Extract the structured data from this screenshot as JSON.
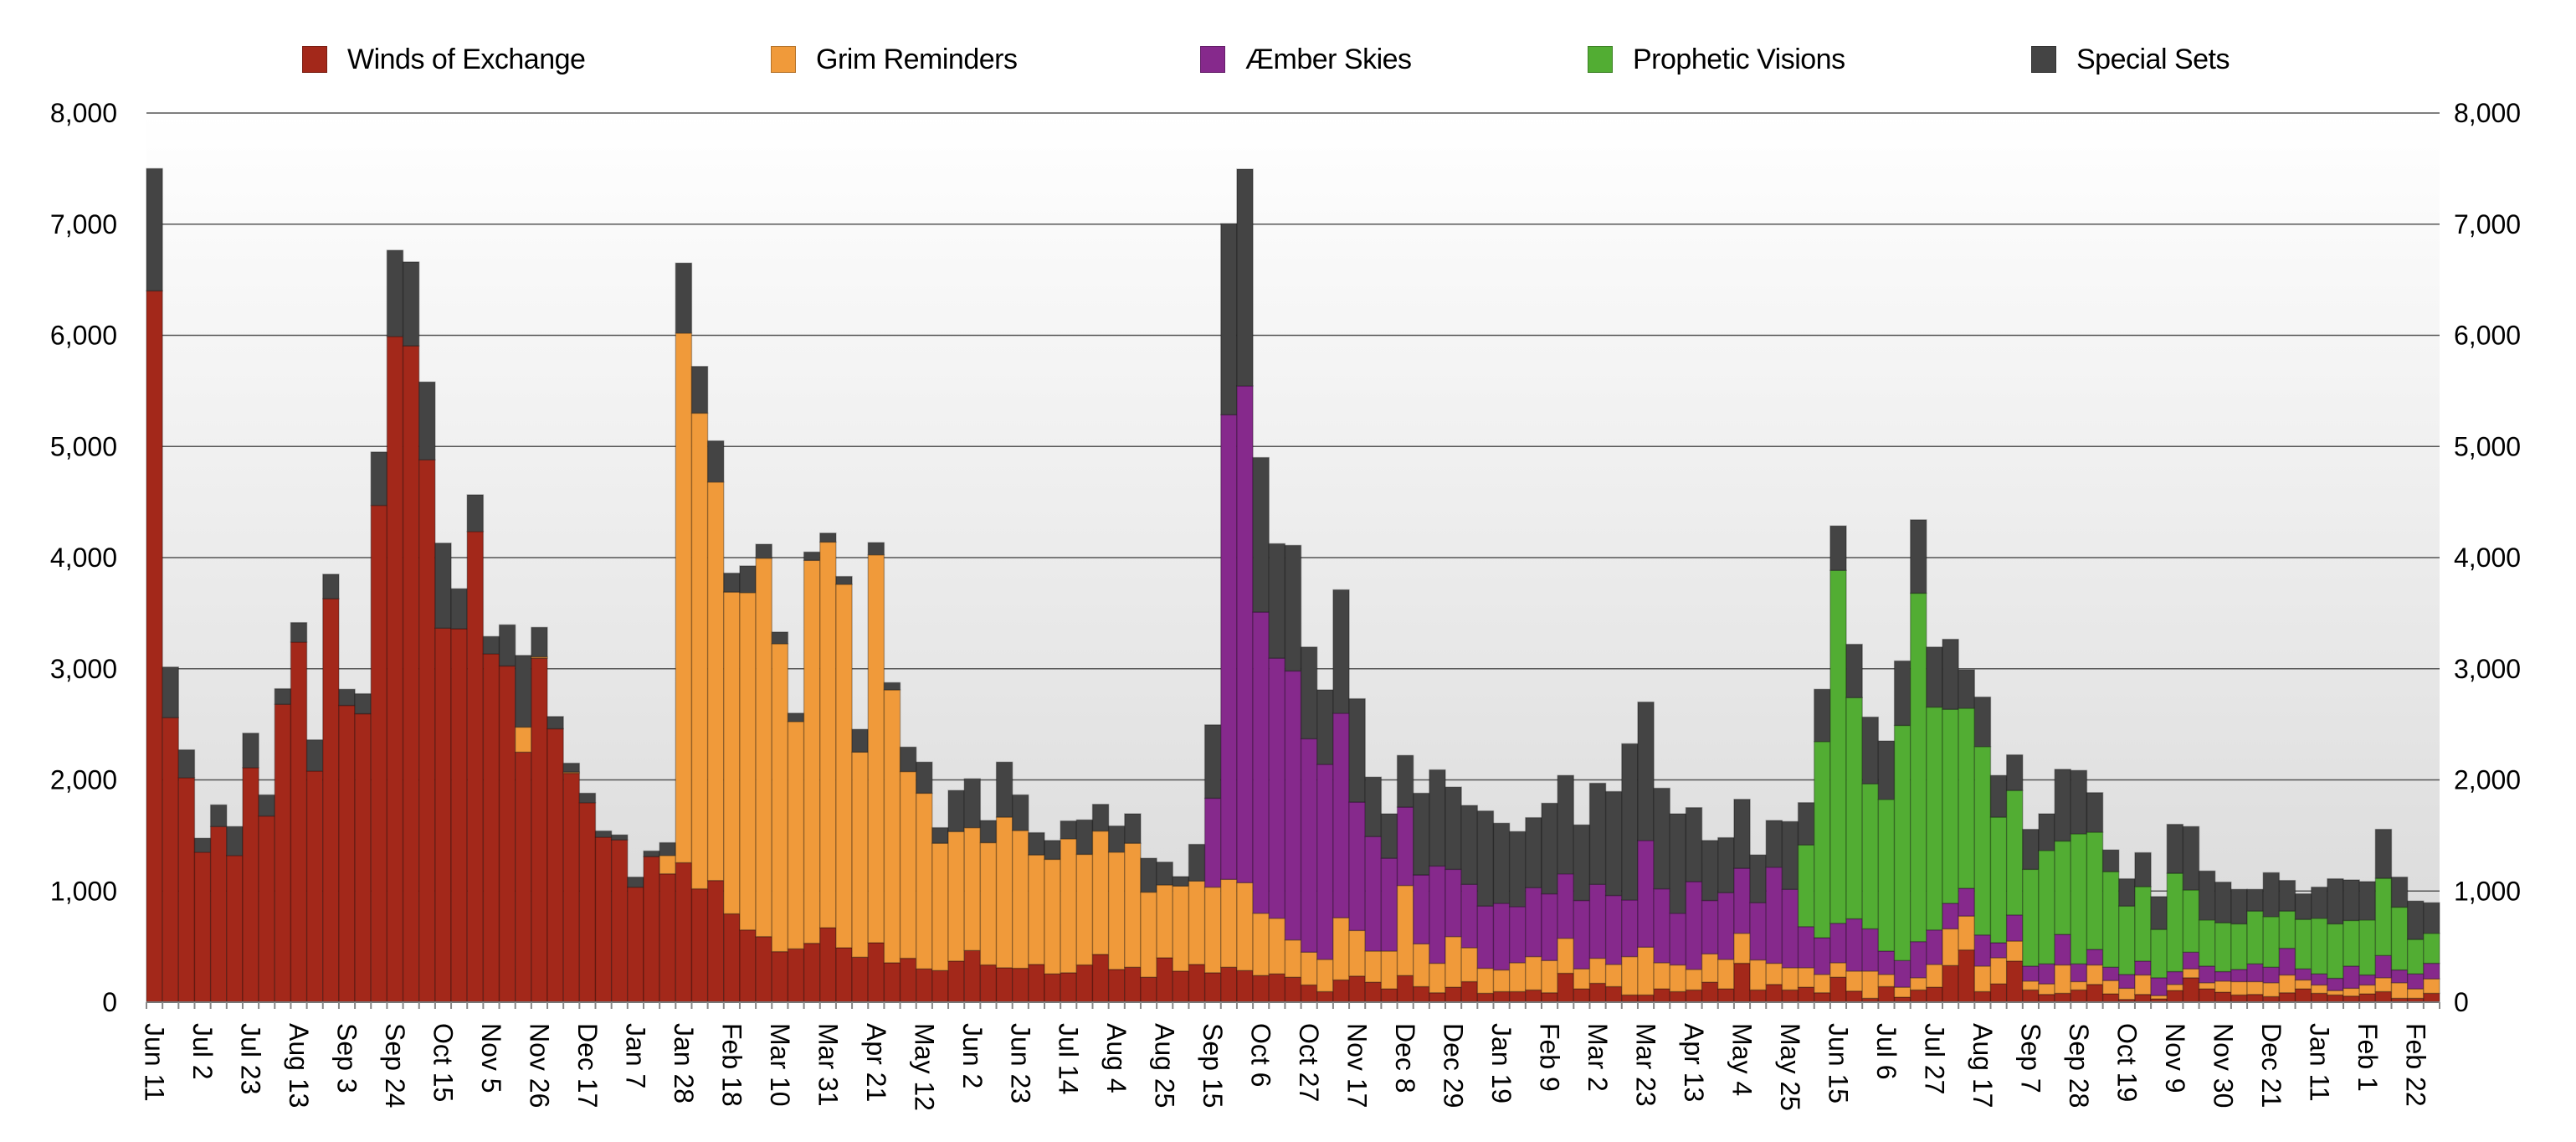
{
  "chart_data": {
    "type": "bar",
    "stacked": true,
    "ylim": [
      0,
      8000
    ],
    "y_ticks": [
      "0",
      "1,000",
      "2,000",
      "3,000",
      "4,000",
      "5,000",
      "6,000",
      "7,000",
      "8,000"
    ],
    "y_axis_sides": "left and right",
    "grid": true,
    "legend_position": "top",
    "x_tick_labels": [
      "Jun 11",
      "Jul 2",
      "Jul 23",
      "Aug 13",
      "Sep 3",
      "Sep 24",
      "Oct 15",
      "Nov 5",
      "Nov 26",
      "Dec 17",
      "Jan 7",
      "Jan 28",
      "Feb 18",
      "Mar 10",
      "Mar 31",
      "Apr 21",
      "May 12",
      "Jun 2",
      "Jun 23",
      "Jul 14",
      "Aug 4",
      "Aug 25",
      "Sep 15",
      "Oct 6",
      "Oct 27",
      "Nov 17",
      "Dec 8",
      "Dec 29",
      "Jan 19",
      "Feb 9",
      "Mar 2",
      "Mar 23",
      "Apr 13",
      "May 4",
      "May 25",
      "Jun 15",
      "Jul 6",
      "Jul 27",
      "Aug 17",
      "Sep 7",
      "Sep 28",
      "Oct 19",
      "Nov 9",
      "Nov 30",
      "Dec 21",
      "Jan 11",
      "Feb 1",
      "Feb 22"
    ],
    "x_tick_every_n_bars": 3,
    "series": [
      {
        "name": "Winds of Exchange",
        "color": "#a3281a",
        "values": [
          6400,
          2560,
          2020,
          1350,
          1580,
          1320,
          2110,
          1675,
          2680,
          3240,
          2080,
          3630,
          2670,
          2595,
          4470,
          5990,
          5905,
          4880,
          3365,
          3360,
          4235,
          3135,
          3025,
          2250,
          3095,
          2460,
          2060,
          1795,
          1485,
          1460,
          1035,
          1310,
          1155,
          1255,
          1020,
          1095,
          795,
          650,
          590,
          455,
          480,
          530,
          670,
          490,
          405,
          535,
          355,
          395,
          300,
          285,
          370,
          465,
          335,
          310,
          305,
          340,
          255,
          265,
          335,
          430,
          295,
          315,
          225,
          400,
          280,
          340,
          265,
          315,
          285,
          240,
          255,
          225,
          155,
          95,
          200,
          235,
          180,
          120,
          240,
          140,
          85,
          135,
          185,
          80,
          95,
          95,
          110,
          85,
          260,
          120,
          170,
          140,
          65,
          65,
          120,
          95,
          110,
          180,
          120,
          350,
          110,
          160,
          110,
          135,
          85,
          225,
          100,
          35,
          140,
          45,
          110,
          135,
          330,
          470,
          95,
          165,
          370,
          110,
          70,
          80,
          110,
          160,
          75,
          25,
          70,
          30,
          105,
          220,
          120,
          90,
          65,
          70,
          50,
          85,
          120,
          80,
          65,
          55,
          75,
          95,
          35,
          35,
          80
        ]
      },
      {
        "name": "Grim Reminders",
        "color": "#f09a3a",
        "values": [
          0,
          0,
          0,
          0,
          0,
          0,
          0,
          0,
          0,
          0,
          0,
          0,
          0,
          0,
          0,
          0,
          0,
          0,
          0,
          0,
          0,
          0,
          0,
          225,
          12,
          0,
          10,
          0,
          0,
          0,
          0,
          0,
          165,
          4765,
          4280,
          3585,
          2895,
          3035,
          3405,
          2770,
          2045,
          3445,
          3470,
          3270,
          1845,
          3490,
          2455,
          1680,
          1580,
          1145,
          1165,
          1105,
          1100,
          1355,
          1240,
          985,
          1030,
          1205,
          995,
          1110,
          1055,
          1115,
          765,
          655,
          765,
          750,
          770,
          790,
          790,
          560,
          500,
          335,
          295,
          290,
          560,
          410,
          280,
          340,
          810,
          385,
          265,
          455,
          305,
          225,
          195,
          260,
          300,
          290,
          315,
          180,
          225,
          200,
          345,
          430,
          235,
          240,
          185,
          255,
          265,
          270,
          270,
          190,
          200,
          175,
          165,
          130,
          180,
          245,
          110,
          90,
          110,
          205,
          330,
          305,
          230,
          235,
          180,
          80,
          95,
          255,
          75,
          175,
          120,
          100,
          175,
          30,
          55,
          80,
          55,
          100,
          120,
          115,
          125,
          160,
          80,
          75,
          40,
          70,
          80,
          125,
          140,
          85,
          130
        ]
      },
      {
        "name": "Æmber Skies",
        "color": "#86298c",
        "values": [
          0,
          0,
          0,
          0,
          0,
          0,
          0,
          0,
          0,
          0,
          0,
          0,
          0,
          0,
          0,
          0,
          0,
          0,
          0,
          0,
          0,
          0,
          0,
          0,
          0,
          0,
          0,
          0,
          0,
          0,
          0,
          0,
          0,
          0,
          0,
          0,
          0,
          0,
          0,
          0,
          0,
          0,
          0,
          0,
          0,
          0,
          0,
          0,
          0,
          0,
          0,
          0,
          0,
          0,
          0,
          0,
          0,
          0,
          0,
          0,
          0,
          0,
          0,
          0,
          0,
          0,
          800,
          4180,
          4470,
          2710,
          2340,
          2420,
          1920,
          1755,
          1840,
          1155,
          1030,
          835,
          705,
          620,
          875,
          605,
          570,
          560,
          600,
          505,
          620,
          600,
          580,
          615,
          665,
          620,
          510,
          960,
          665,
          465,
          790,
          480,
          600,
          585,
          515,
          865,
          705,
          370,
          330,
          355,
          470,
          380,
          210,
          240,
          325,
          310,
          230,
          250,
          280,
          135,
          235,
          135,
          180,
          275,
          160,
          140,
          120,
          125,
          125,
          160,
          115,
          150,
          150,
          85,
          110,
          160,
          140,
          240,
          100,
          100,
          110,
          200,
          90,
          200,
          115,
          135,
          140
        ]
      },
      {
        "name": "Prophetic Visions",
        "color": "#52ad33",
        "values": [
          0,
          0,
          0,
          0,
          0,
          0,
          0,
          0,
          0,
          0,
          0,
          0,
          0,
          0,
          0,
          0,
          0,
          0,
          0,
          0,
          0,
          0,
          0,
          0,
          0,
          0,
          0,
          0,
          0,
          0,
          0,
          0,
          0,
          0,
          0,
          0,
          0,
          0,
          0,
          0,
          0,
          0,
          0,
          0,
          0,
          0,
          0,
          0,
          0,
          0,
          0,
          0,
          0,
          0,
          0,
          0,
          0,
          0,
          0,
          0,
          0,
          0,
          0,
          0,
          0,
          0,
          0,
          0,
          0,
          0,
          0,
          0,
          0,
          0,
          0,
          0,
          0,
          0,
          0,
          0,
          0,
          0,
          0,
          0,
          0,
          0,
          0,
          0,
          0,
          0,
          0,
          0,
          0,
          0,
          0,
          0,
          0,
          0,
          0,
          0,
          0,
          0,
          0,
          735,
          1765,
          3175,
          1990,
          1305,
          1365,
          2115,
          3135,
          2005,
          1745,
          1620,
          1695,
          1130,
          1120,
          870,
          1020,
          840,
          1170,
          1055,
          860,
          615,
          670,
          435,
          885,
          560,
          415,
          440,
          410,
          475,
          455,
          335,
          445,
          500,
          490,
          410,
          495,
          695,
          565,
          310,
          270
        ]
      },
      {
        "name": "Special Sets",
        "color": "#444444",
        "values": [
          1100,
          455,
          250,
          125,
          195,
          260,
          310,
          190,
          140,
          175,
          280,
          220,
          145,
          180,
          480,
          775,
          755,
          700,
          765,
          360,
          330,
          155,
          370,
          645,
          265,
          110,
          80,
          85,
          55,
          45,
          90,
          50,
          115,
          630,
          420,
          370,
          170,
          240,
          125,
          105,
          75,
          75,
          80,
          70,
          205,
          110,
          65,
          220,
          280,
          140,
          370,
          440,
          200,
          495,
          320,
          200,
          170,
          160,
          310,
          240,
          235,
          265,
          305,
          205,
          85,
          330,
          660,
          1720,
          1950,
          1390,
          1030,
          1130,
          825,
          670,
          1110,
          930,
          535,
          400,
          465,
          735,
          865,
          740,
          710,
          855,
          720,
          675,
          630,
          815,
          885,
          680,
          910,
          935,
          1405,
          1245,
          905,
          895,
          665,
          540,
          495,
          620,
          430,
          420,
          610,
          380,
          470,
          400,
          480,
          600,
          525,
          580,
          660,
          540,
          630,
          345,
          445,
          375,
          320,
          360,
          330,
          645,
          570,
          355,
          195,
          245,
          305,
          295,
          440,
          570,
          440,
          365,
          310,
          195,
          395,
          275,
          230,
          280,
          405,
          365,
          345,
          440,
          270,
          345,
          275
        ]
      }
    ]
  }
}
